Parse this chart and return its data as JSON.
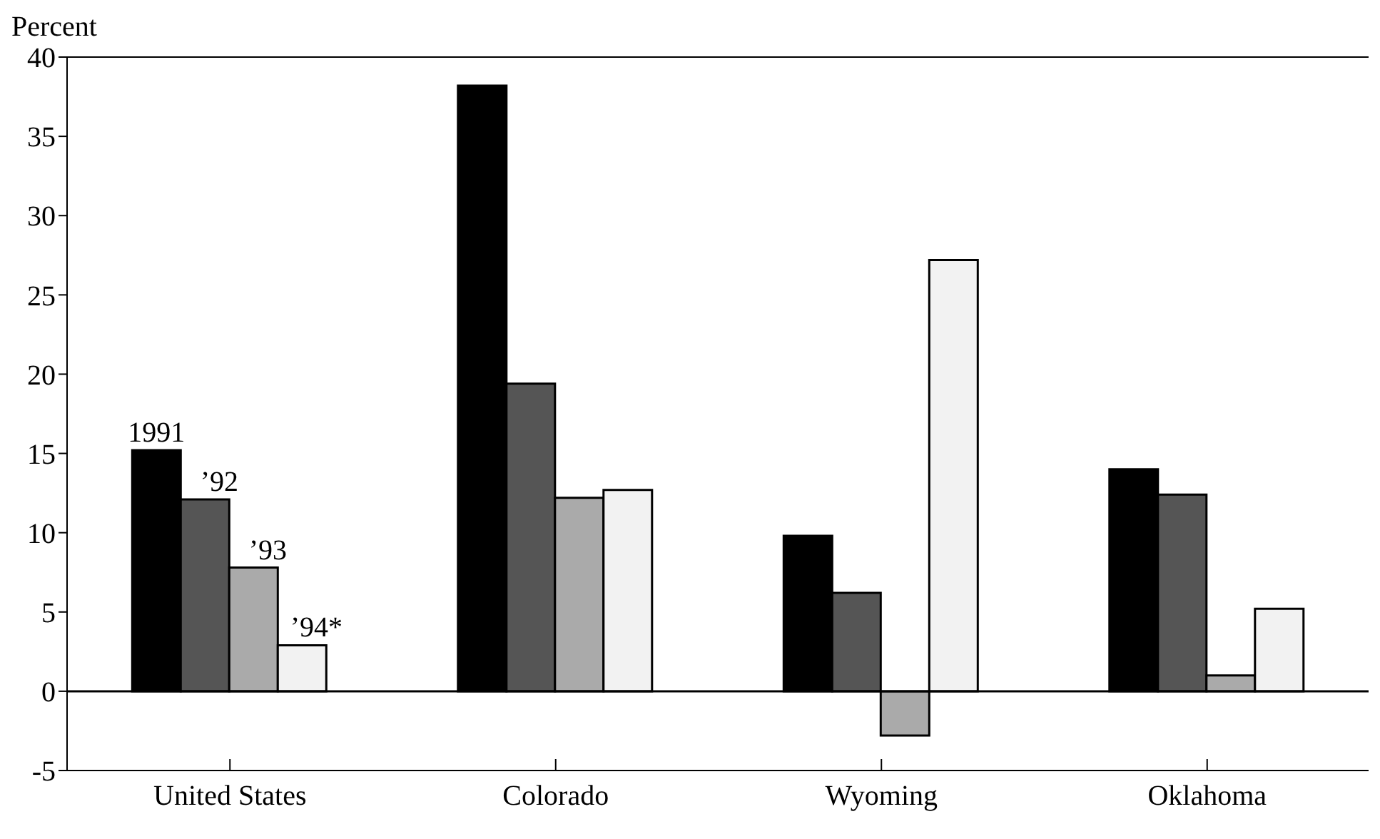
{
  "chart_data": {
    "type": "bar",
    "ylabel": "Percent",
    "categories": [
      "United States",
      "Colorado",
      "Wyoming",
      "Oklahoma"
    ],
    "series": [
      {
        "name": "1991",
        "color": "#000000",
        "values": [
          15.2,
          38.2,
          9.8,
          14.0
        ]
      },
      {
        "name": "’92",
        "color": "#555555",
        "values": [
          12.1,
          19.4,
          6.2,
          12.4
        ]
      },
      {
        "name": "’93",
        "color": "#aaaaaa",
        "values": [
          7.8,
          12.2,
          -2.8,
          1.0
        ]
      },
      {
        "name": "’94*",
        "color": "#f2f2f2",
        "values": [
          2.9,
          12.7,
          27.2,
          5.2
        ]
      }
    ],
    "ylim": [
      -5,
      40
    ],
    "yticks": [
      -5,
      0,
      5,
      10,
      15,
      20,
      25,
      30,
      35,
      40
    ],
    "grid": false,
    "legend": false,
    "ref_lines": [
      {
        "axis": "y",
        "value": 0,
        "color": "#000000"
      }
    ]
  }
}
